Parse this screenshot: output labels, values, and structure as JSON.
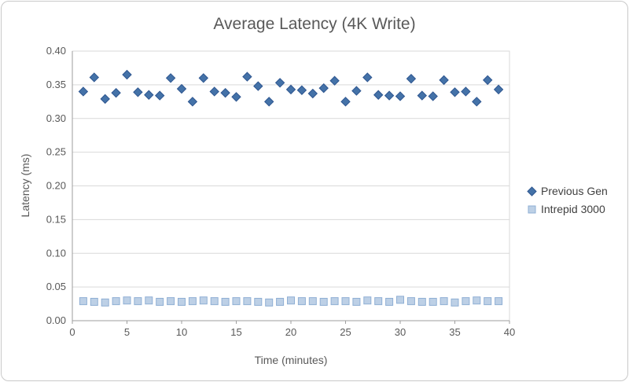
{
  "chart_data": {
    "type": "scatter",
    "title": "Average Latency (4K Write)",
    "xlabel": "Time (minutes)",
    "ylabel": "Latency (ms)",
    "xlim": [
      0,
      40
    ],
    "ylim": [
      0,
      0.4
    ],
    "x_ticks": [
      0,
      5,
      10,
      15,
      20,
      25,
      30,
      35,
      40
    ],
    "y_ticks": [
      0,
      0.05,
      0.1,
      0.15,
      0.2,
      0.25,
      0.3,
      0.35,
      0.4
    ],
    "y_tick_labels": [
      "0.00",
      "0.05",
      "0.10",
      "0.15",
      "0.20",
      "0.25",
      "0.30",
      "0.35",
      "0.40"
    ],
    "grid": "horizontal",
    "legend_position": "right",
    "series": [
      {
        "name": "Previous Gen",
        "marker": "diamond",
        "color": "#4472a8",
        "border_color": "#2e5690",
        "x": [
          1,
          2,
          3,
          4,
          5,
          6,
          7,
          8,
          9,
          10,
          11,
          12,
          13,
          14,
          15,
          16,
          17,
          18,
          19,
          20,
          21,
          22,
          23,
          24,
          25,
          26,
          27,
          28,
          29,
          30,
          31,
          32,
          33,
          34,
          35,
          36,
          37,
          38,
          39
        ],
        "y": [
          0.34,
          0.361,
          0.329,
          0.338,
          0.365,
          0.339,
          0.335,
          0.334,
          0.36,
          0.344,
          0.325,
          0.36,
          0.34,
          0.338,
          0.332,
          0.362,
          0.348,
          0.325,
          0.353,
          0.343,
          0.342,
          0.337,
          0.345,
          0.356,
          0.325,
          0.341,
          0.361,
          0.335,
          0.334,
          0.333,
          0.359,
          0.334,
          0.333,
          0.357,
          0.339,
          0.34,
          0.325,
          0.357,
          0.343
        ]
      },
      {
        "name": "Intrepid 3000",
        "marker": "square",
        "color": "#bdd0e6",
        "border_color": "#8fafd4",
        "x": [
          1,
          2,
          3,
          4,
          5,
          6,
          7,
          8,
          9,
          10,
          11,
          12,
          13,
          14,
          15,
          16,
          17,
          18,
          19,
          20,
          21,
          22,
          23,
          24,
          25,
          26,
          27,
          28,
          29,
          30,
          31,
          32,
          33,
          34,
          35,
          36,
          37,
          38,
          39
        ],
        "y": [
          0.029,
          0.028,
          0.027,
          0.029,
          0.03,
          0.029,
          0.03,
          0.028,
          0.029,
          0.028,
          0.029,
          0.03,
          0.029,
          0.028,
          0.029,
          0.029,
          0.028,
          0.027,
          0.028,
          0.03,
          0.029,
          0.029,
          0.028,
          0.029,
          0.029,
          0.028,
          0.03,
          0.029,
          0.028,
          0.031,
          0.029,
          0.028,
          0.028,
          0.029,
          0.027,
          0.029,
          0.03,
          0.029,
          0.029
        ]
      }
    ],
    "colors": {
      "grid_line": "#d9d9d9",
      "axis_line": "#9e9e9e",
      "tick_text": "#595959",
      "title_text": "#595959"
    }
  }
}
